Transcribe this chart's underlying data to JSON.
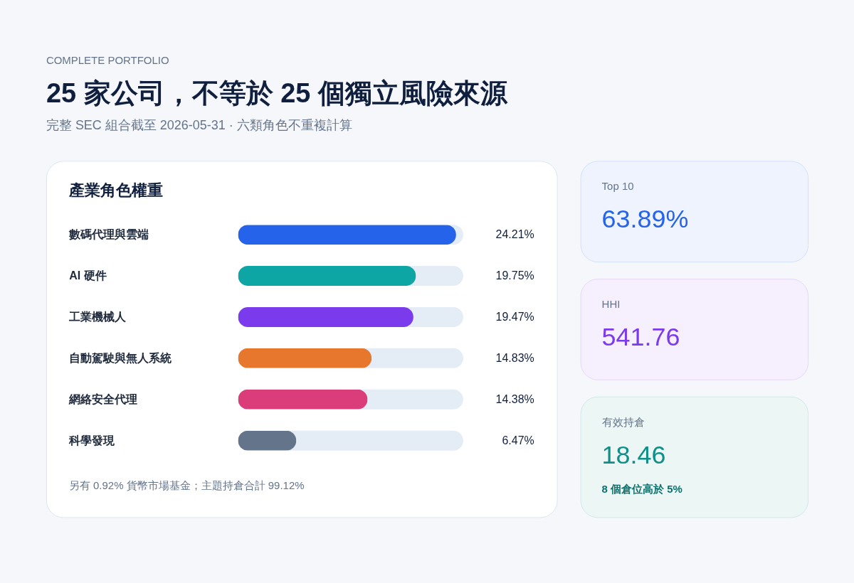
{
  "chart_data": [
    {
      "type": "other",
      "title": "25 家公司，不等於 25 個獨立風險來源",
      "subtitle": "完整 SEC 組合截至 2026-05-31 · 六類角色不重複計算",
      "annotations": [
        "COMPLETE PORTFOLIO"
      ]
    },
    {
      "type": "bar",
      "orientation": "horizontal",
      "title": "產業角色權重",
      "categories": [
        "數碼代理與雲端",
        "AI 硬件",
        "工業機械人",
        "自動駕駛與無人系統",
        "網絡安全代理",
        "科學發現"
      ],
      "values": [
        24.21,
        19.75,
        19.47,
        14.83,
        14.38,
        6.47
      ],
      "colors": [
        "#2563eb",
        "#0ea5a5",
        "#7c3aed",
        "#e8772e",
        "#db3d7a",
        "#64748b"
      ],
      "value_labels": [
        "24.21%",
        "19.75%",
        "19.47%",
        "14.83%",
        "14.38%",
        "6.47%"
      ],
      "xlim": [
        0,
        25
      ],
      "tick_labels": "y",
      "annotations": [
        "另有 0.92% 貨幣市場基金；主題持倉合計 99.12%"
      ]
    },
    {
      "type": "other",
      "title": "Top 10",
      "annotations": [
        "63.89%"
      ],
      "color": "#2563eb"
    },
    {
      "type": "other",
      "title": "HHI",
      "annotations": [
        "541.76"
      ],
      "color": "#7c3aed"
    },
    {
      "type": "other",
      "title": "有效持倉",
      "annotations": [
        "18.46",
        "8 個倉位高於 5%"
      ],
      "color": "#0f8f88"
    }
  ]
}
